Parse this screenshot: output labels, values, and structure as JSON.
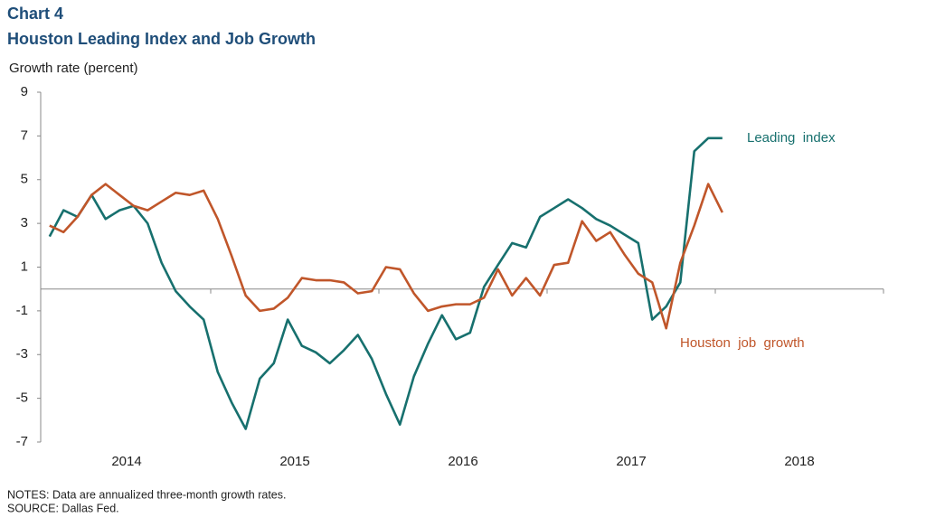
{
  "chart_data": {
    "type": "line",
    "title": "Chart 4",
    "subtitle": "Houston Leading Index and Job Growth",
    "y_label": "Growth  rate (percent)",
    "notes": "NOTES:  Data are annualized three-month growth rates.",
    "source": "SOURCE:  Dallas Fed.",
    "x": [
      2014.042,
      2014.125,
      2014.208,
      2014.292,
      2014.375,
      2014.458,
      2014.542,
      2014.625,
      2014.708,
      2014.792,
      2014.875,
      2014.958,
      2015.042,
      2015.125,
      2015.208,
      2015.292,
      2015.375,
      2015.458,
      2015.542,
      2015.625,
      2015.708,
      2015.792,
      2015.875,
      2015.958,
      2016.042,
      2016.125,
      2016.208,
      2016.292,
      2016.375,
      2016.458,
      2016.542,
      2016.625,
      2016.708,
      2016.792,
      2016.875,
      2016.958,
      2017.042,
      2017.125,
      2017.208,
      2017.292,
      2017.375,
      2017.458,
      2017.542,
      2017.625,
      2017.708,
      2017.792,
      2017.875,
      2017.958,
      2018.042
    ],
    "series": [
      {
        "name": "Leading  index",
        "color": "#17706e",
        "values": [
          2.4,
          3.6,
          3.3,
          4.3,
          3.2,
          3.6,
          3.8,
          3.0,
          1.2,
          -0.1,
          -0.8,
          -1.4,
          -3.8,
          -5.2,
          -6.4,
          -4.1,
          -3.4,
          -1.4,
          -2.6,
          -2.9,
          -3.4,
          -2.8,
          -2.1,
          -3.2,
          -4.8,
          -6.2,
          -4.0,
          -2.5,
          -1.2,
          -2.3,
          -2.0,
          0.1,
          1.1,
          2.1,
          1.9,
          3.3,
          3.7,
          4.1,
          3.7,
          3.2,
          2.9,
          2.5,
          2.1,
          -1.4,
          -0.8,
          0.3,
          6.3,
          6.9,
          6.9
        ]
      },
      {
        "name": "Houston  job  growth",
        "color": "#c0562a",
        "values": [
          2.9,
          2.6,
          3.3,
          4.3,
          4.8,
          4.3,
          3.8,
          3.6,
          4.0,
          4.4,
          4.3,
          4.5,
          3.2,
          1.5,
          -0.3,
          -1.0,
          -0.9,
          -0.4,
          0.5,
          0.4,
          0.4,
          0.3,
          -0.2,
          -0.1,
          1.0,
          0.9,
          -0.2,
          -1.0,
          -0.8,
          -0.7,
          -0.7,
          -0.4,
          0.9,
          -0.3,
          0.5,
          -0.3,
          1.1,
          1.2,
          3.1,
          2.2,
          2.6,
          1.6,
          0.7,
          0.3,
          -1.8,
          1.2,
          2.9,
          4.8,
          3.5
        ]
      }
    ],
    "xlim": [
      2014,
      2019
    ],
    "xticks": [
      2015,
      2016,
      2017,
      2018,
      2019
    ],
    "xlabels": [
      {
        "value": 2014.5,
        "label": "2014"
      },
      {
        "value": 2015.5,
        "label": "2015"
      },
      {
        "value": 2016.5,
        "label": "2016"
      },
      {
        "value": 2017.5,
        "label": "2017"
      },
      {
        "value": 2018.5,
        "label": "2018"
      }
    ],
    "ylim": [
      -7,
      9
    ],
    "yticks": [
      -7,
      -5,
      -3,
      -1,
      1,
      3,
      5,
      7,
      9
    ]
  }
}
